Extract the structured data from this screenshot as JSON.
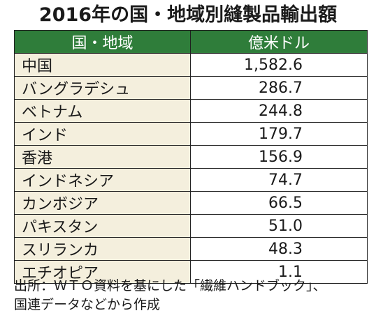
{
  "title": "2016年の国・地域別縫製品輸出額",
  "table": {
    "headers": [
      "国・地域",
      "億米ドル"
    ],
    "rows": [
      {
        "country": "中国",
        "value": "1,582.6"
      },
      {
        "country": "バングラデシュ",
        "value": "286.7"
      },
      {
        "country": "ベトナム",
        "value": "244.8"
      },
      {
        "country": "インド",
        "value": "179.7"
      },
      {
        "country": "香港",
        "value": "156.9"
      },
      {
        "country": "インドネシア",
        "value": "74.7"
      },
      {
        "country": "カンボジア",
        "value": "66.5"
      },
      {
        "country": "パキスタン",
        "value": "51.0"
      },
      {
        "country": "スリランカ",
        "value": "48.3"
      },
      {
        "country": "エチオピア",
        "value": "1.1"
      }
    ]
  },
  "source": {
    "line1": "出所：ＷＴＯ資料を基にした「繊維ハンドブック」、",
    "line2": "国連データなどから作成"
  },
  "colors": {
    "header_bg": "#2f7d3a",
    "country_cell_bg": "#f4efdd",
    "border": "#1f1f1f"
  }
}
